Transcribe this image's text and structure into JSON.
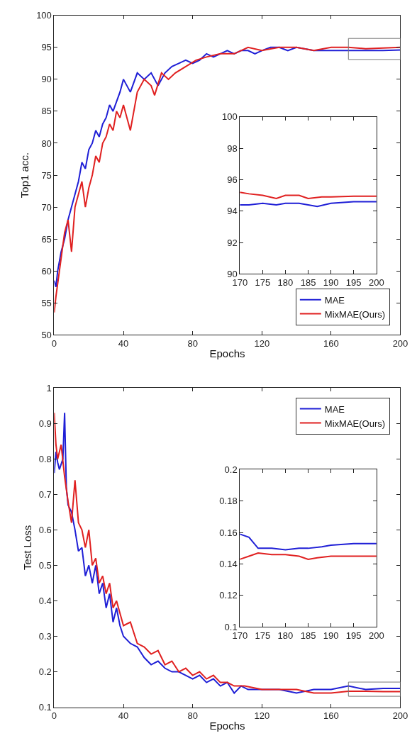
{
  "chart_data": [
    {
      "type": "line",
      "xlabel": "Epochs",
      "ylabel": "Top1 acc.",
      "xlim": [
        0,
        200
      ],
      "ylim": [
        50,
        100
      ],
      "xticks": [
        0,
        40,
        80,
        120,
        160,
        200
      ],
      "yticks": [
        50,
        55,
        60,
        65,
        70,
        75,
        80,
        85,
        90,
        95,
        100
      ],
      "legend": "bottom right",
      "marker": "none",
      "line_style": "solid",
      "series": [
        {
          "name": "MAE",
          "color": "#1f1fd6",
          "x": [
            0,
            1,
            2,
            4,
            6,
            8,
            10,
            12,
            14,
            16,
            18,
            20,
            22,
            24,
            26,
            28,
            30,
            32,
            34,
            36,
            38,
            40,
            44,
            48,
            52,
            56,
            60,
            64,
            68,
            72,
            76,
            80,
            84,
            88,
            92,
            96,
            100,
            104,
            108,
            112,
            116,
            120,
            125,
            130,
            135,
            140,
            150,
            160,
            170,
            180,
            190,
            200
          ],
          "values": [
            58.5,
            57.5,
            60,
            63,
            65,
            68,
            70,
            72,
            74,
            77,
            76,
            79,
            80,
            82,
            81,
            83,
            84,
            86,
            85,
            86.5,
            88,
            90,
            88,
            91,
            90,
            91,
            89,
            91,
            92,
            92.5,
            93,
            92.5,
            93,
            94,
            93.5,
            94,
            94.5,
            94,
            94.5,
            94.5,
            94,
            94.5,
            95,
            95,
            94.5,
            95,
            94.5,
            94.5,
            94.5,
            94.5,
            94.5,
            94.6
          ]
        },
        {
          "name": "MixMAE(Ours)",
          "color": "#e02020",
          "x": [
            0,
            1,
            3,
            6,
            8,
            10,
            12,
            14,
            16,
            18,
            20,
            22,
            24,
            26,
            28,
            30,
            32,
            34,
            36,
            38,
            40,
            44,
            48,
            52,
            56,
            58,
            62,
            66,
            70,
            76,
            82,
            88,
            96,
            104,
            112,
            120,
            130,
            140,
            150,
            160,
            170,
            180,
            190,
            200
          ],
          "values": [
            53.5,
            56,
            60,
            66,
            68,
            63,
            70,
            72,
            74,
            70,
            73,
            75,
            78,
            77,
            80,
            81,
            83,
            82,
            85,
            84,
            86,
            82,
            88,
            90,
            89,
            87.5,
            91,
            90,
            91,
            92,
            93,
            93.5,
            94,
            94,
            95,
            94.5,
            95,
            95,
            94.5,
            95,
            95,
            94.8,
            94.9,
            95
          ]
        }
      ]
    },
    {
      "type": "line",
      "xlim": [
        170,
        200
      ],
      "ylim": [
        90,
        100
      ],
      "xticks": [
        170,
        175,
        180,
        185,
        190,
        195,
        200
      ],
      "yticks": [
        90,
        92,
        94,
        96,
        98,
        100
      ],
      "marker": "none",
      "line_style": "solid",
      "series": [
        {
          "color": "#1f1fd6",
          "x": [
            170,
            172,
            175,
            178,
            180,
            183,
            185,
            187,
            190,
            195,
            200
          ],
          "values": [
            94.4,
            94.4,
            94.5,
            94.4,
            94.5,
            94.5,
            94.4,
            94.3,
            94.5,
            94.6,
            94.6
          ]
        },
        {
          "color": "#e02020",
          "x": [
            170,
            172,
            175,
            178,
            180,
            183,
            185,
            188,
            190,
            195,
            200
          ],
          "values": [
            95.2,
            95.1,
            95.0,
            94.8,
            95.0,
            95.0,
            94.8,
            94.9,
            94.9,
            94.95,
            94.95
          ]
        }
      ]
    },
    {
      "type": "line",
      "xlabel": "Epochs",
      "ylabel": "Test Loss",
      "xlim": [
        0,
        200
      ],
      "ylim": [
        0.1,
        1
      ],
      "xticks": [
        0,
        40,
        80,
        120,
        160,
        200
      ],
      "yticks": [
        0.1,
        0.2,
        0.3,
        0.4,
        0.5,
        0.6,
        0.7,
        0.8,
        0.9,
        1
      ],
      "legend": "top right",
      "marker": "none",
      "line_style": "solid",
      "series": [
        {
          "name": "MAE",
          "color": "#1f1fd6",
          "x": [
            0,
            1,
            2,
            3,
            5,
            6,
            7,
            8,
            10,
            12,
            14,
            16,
            18,
            20,
            22,
            24,
            26,
            28,
            30,
            32,
            34,
            36,
            38,
            40,
            44,
            48,
            52,
            56,
            60,
            64,
            68,
            72,
            76,
            80,
            84,
            88,
            92,
            96,
            100,
            104,
            108,
            112,
            120,
            130,
            140,
            150,
            160,
            170,
            180,
            190,
            200
          ],
          "values": [
            0.76,
            0.82,
            0.79,
            0.77,
            0.8,
            0.93,
            0.72,
            0.67,
            0.65,
            0.6,
            0.54,
            0.55,
            0.47,
            0.5,
            0.45,
            0.5,
            0.42,
            0.45,
            0.38,
            0.42,
            0.34,
            0.38,
            0.33,
            0.3,
            0.28,
            0.27,
            0.24,
            0.22,
            0.23,
            0.21,
            0.2,
            0.2,
            0.19,
            0.18,
            0.19,
            0.17,
            0.18,
            0.16,
            0.17,
            0.14,
            0.16,
            0.15,
            0.15,
            0.15,
            0.14,
            0.15,
            0.15,
            0.16,
            0.15,
            0.153,
            0.153
          ]
        },
        {
          "name": "MixMAE(Ours)",
          "color": "#e02020",
          "x": [
            0,
            1,
            2,
            4,
            6,
            8,
            10,
            12,
            14,
            16,
            18,
            20,
            22,
            24,
            26,
            28,
            30,
            32,
            34,
            36,
            40,
            44,
            48,
            52,
            56,
            60,
            64,
            68,
            72,
            76,
            80,
            84,
            88,
            92,
            96,
            100,
            104,
            110,
            120,
            130,
            140,
            150,
            160,
            170,
            180,
            190,
            200
          ],
          "values": [
            0.93,
            0.84,
            0.8,
            0.84,
            0.75,
            0.68,
            0.62,
            0.74,
            0.62,
            0.6,
            0.55,
            0.6,
            0.5,
            0.52,
            0.45,
            0.47,
            0.42,
            0.45,
            0.38,
            0.4,
            0.33,
            0.34,
            0.28,
            0.27,
            0.25,
            0.26,
            0.22,
            0.23,
            0.2,
            0.21,
            0.19,
            0.2,
            0.18,
            0.19,
            0.17,
            0.17,
            0.16,
            0.16,
            0.15,
            0.15,
            0.15,
            0.14,
            0.14,
            0.145,
            0.145,
            0.144,
            0.144
          ]
        }
      ]
    },
    {
      "type": "line",
      "xlim": [
        170,
        200
      ],
      "ylim": [
        0.1,
        0.2
      ],
      "xticks": [
        170,
        175,
        180,
        185,
        190,
        195,
        200
      ],
      "yticks": [
        0.1,
        0.12,
        0.14,
        0.16,
        0.18,
        0.2
      ],
      "marker": "none",
      "line_style": "solid",
      "series": [
        {
          "color": "#1f1fd6",
          "x": [
            170,
            172,
            174,
            177,
            180,
            183,
            185,
            188,
            190,
            195,
            200
          ],
          "values": [
            0.159,
            0.157,
            0.15,
            0.15,
            0.149,
            0.15,
            0.15,
            0.151,
            0.152,
            0.153,
            0.153
          ]
        },
        {
          "color": "#e02020",
          "x": [
            170,
            172,
            174,
            177,
            180,
            183,
            185,
            187,
            190,
            195,
            200
          ],
          "values": [
            0.143,
            0.145,
            0.147,
            0.146,
            0.146,
            0.145,
            0.143,
            0.144,
            0.145,
            0.145,
            0.145
          ]
        }
      ]
    }
  ]
}
